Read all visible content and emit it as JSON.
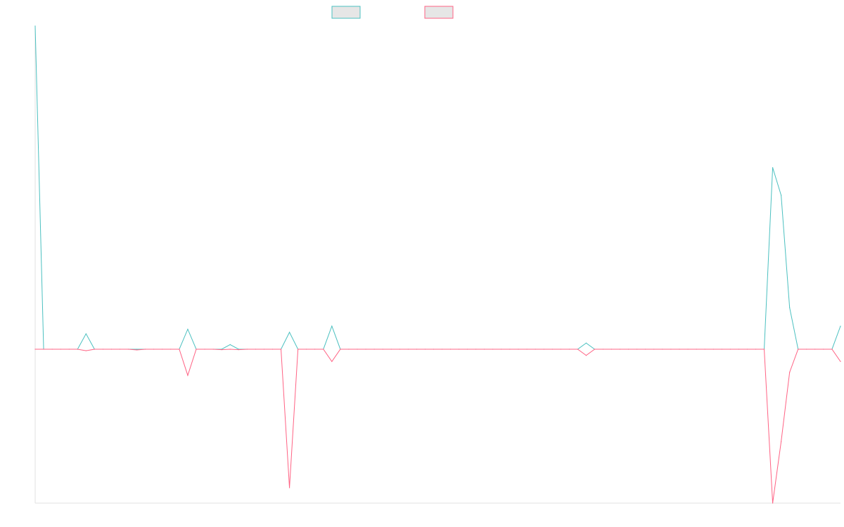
{
  "chart_data": {
    "type": "line",
    "x": [
      1,
      2,
      3,
      4,
      5,
      6,
      7,
      8,
      9,
      10,
      11,
      12,
      13,
      14,
      15,
      16,
      17,
      18,
      19,
      20,
      21,
      22,
      23,
      24,
      25,
      26,
      27,
      28,
      29,
      30,
      31,
      32,
      33,
      34,
      35,
      36,
      37,
      38,
      39,
      40,
      41,
      42,
      43,
      44,
      45,
      46,
      47,
      48,
      49,
      50,
      51,
      52,
      53,
      54,
      55,
      56,
      57,
      58,
      59,
      60,
      61,
      62,
      63,
      64,
      65,
      66,
      67,
      68,
      69,
      70,
      71,
      72,
      73,
      74,
      75,
      76,
      77,
      78,
      79,
      80,
      81,
      82,
      83,
      84,
      85,
      86,
      87,
      88,
      89,
      90,
      91,
      92,
      93,
      94,
      95,
      96
    ],
    "ylim": [
      -100,
      210
    ],
    "grid": false,
    "legend": "top-center",
    "series": [
      {
        "color": "#4bc0c0",
        "fill": "#e6e6e6",
        "values": [
          210,
          0,
          0,
          0,
          0,
          0,
          10,
          0,
          0,
          0,
          0,
          0,
          0,
          0,
          0,
          0,
          0,
          0,
          13,
          0,
          0,
          0,
          0,
          3,
          0,
          0,
          0,
          0,
          0,
          0,
          11,
          0,
          0,
          0,
          0,
          15,
          0,
          0,
          0,
          0,
          0,
          0,
          0,
          0,
          0,
          0,
          0,
          0,
          0,
          0,
          0,
          0,
          0,
          0,
          0,
          0,
          0,
          0,
          0,
          0,
          0,
          0,
          0,
          0,
          0,
          4,
          0,
          0,
          0,
          0,
          0,
          0,
          0,
          0,
          0,
          0,
          0,
          0,
          0,
          0,
          0,
          0,
          0,
          0,
          0,
          0,
          0,
          118,
          100,
          27,
          0,
          0,
          0,
          0,
          0,
          15
        ]
      },
      {
        "color": "#ff6384",
        "fill": "#e6e6e6",
        "values": [
          0,
          0,
          0,
          0,
          0,
          0,
          -1,
          0,
          0,
          0,
          0,
          0,
          -0.5,
          0,
          0,
          0,
          0,
          0,
          -17,
          0,
          0,
          0,
          -0.3,
          0,
          -0.3,
          0,
          0,
          0,
          0,
          0,
          -90,
          0,
          0,
          0,
          0,
          -8,
          0,
          0,
          0,
          0,
          0,
          0,
          0,
          0,
          0,
          0,
          0,
          0,
          0,
          0,
          0,
          0,
          0,
          0,
          0,
          0,
          0,
          0,
          0,
          0,
          0,
          0,
          0,
          0,
          0,
          -4,
          0,
          0,
          0,
          0,
          0,
          0,
          0,
          0,
          0,
          0,
          0,
          0,
          0,
          0,
          0,
          0,
          0,
          0,
          0,
          0,
          0,
          -100,
          -60,
          -15,
          0,
          0,
          0,
          0,
          0,
          -8
        ]
      }
    ]
  }
}
